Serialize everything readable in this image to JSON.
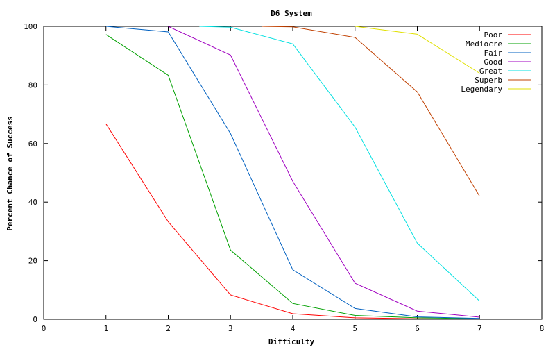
{
  "chart_data": {
    "type": "line",
    "title": "D6 System",
    "xlabel": "Difficulty",
    "ylabel": "Percent Chance of Success",
    "xlim": [
      0,
      8
    ],
    "ylim": [
      0,
      100
    ],
    "x_ticks": [
      "0",
      "1",
      "2",
      "3",
      "4",
      "5",
      "6",
      "7",
      "8"
    ],
    "y_ticks": [
      "0",
      "20",
      "40",
      "60",
      "80",
      "100"
    ],
    "grid": false,
    "legend_position": "top-right",
    "series": [
      {
        "name": "Poor",
        "color": "#ff0000",
        "x": [
          1,
          2,
          3,
          4,
          5,
          6,
          7
        ],
        "y": [
          66.7,
          33.3,
          8.3,
          1.9,
          0.5,
          0.2,
          0.0
        ]
      },
      {
        "name": "Mediocre",
        "color": "#00a000",
        "x": [
          1,
          2,
          3,
          4,
          5,
          6,
          7
        ],
        "y": [
          97.2,
          83.3,
          23.6,
          5.4,
          1.3,
          0.5,
          0.2
        ]
      },
      {
        "name": "Fair",
        "color": "#0060c0",
        "x": [
          1,
          2,
          3,
          4,
          5,
          6,
          7
        ],
        "y": [
          100,
          98.1,
          63.4,
          16.9,
          3.7,
          0.8,
          0.3
        ]
      },
      {
        "name": "Good",
        "color": "#a000c0",
        "x": [
          2,
          3,
          4,
          5,
          6,
          7
        ],
        "y": [
          100,
          90.2,
          47.1,
          12.3,
          2.8,
          0.7
        ]
      },
      {
        "name": "Great",
        "color": "#00e0e0",
        "x": [
          2.5,
          3,
          4,
          5,
          6,
          7
        ],
        "y": [
          100,
          99.7,
          94.0,
          65.6,
          26.0,
          6.2
        ]
      },
      {
        "name": "Superb",
        "color": "#c04000",
        "x": [
          3.5,
          4,
          5,
          6,
          7
        ],
        "y": [
          100,
          99.8,
          96.2,
          77.6,
          42.0
        ]
      },
      {
        "name": "Legendary",
        "color": "#e0e000",
        "x": [
          5,
          6,
          7
        ],
        "y": [
          100,
          97.3,
          84.0
        ]
      }
    ]
  }
}
